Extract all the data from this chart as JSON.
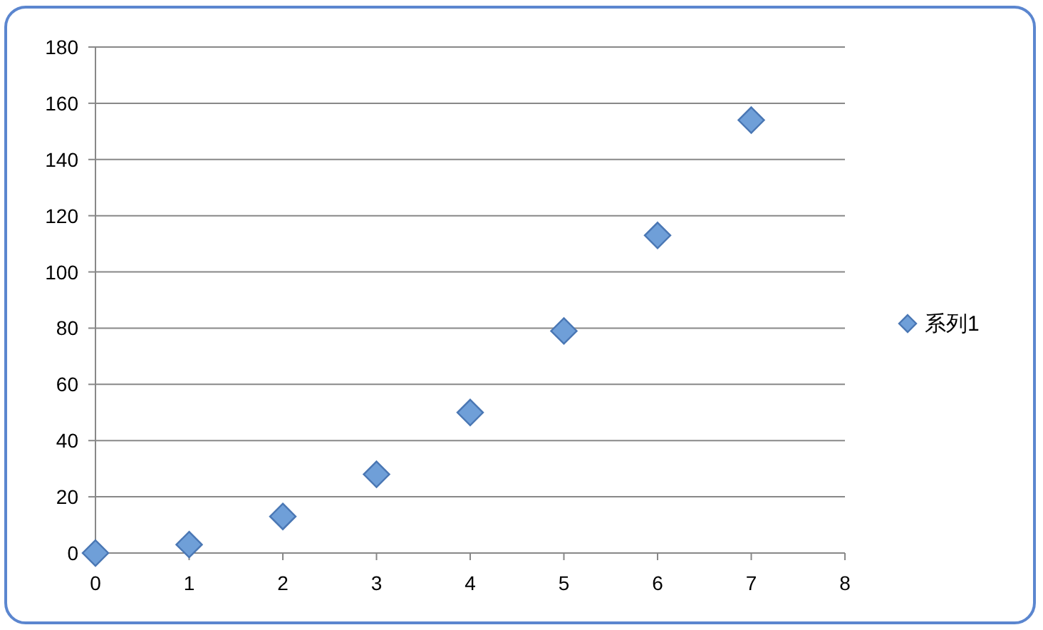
{
  "chart_data": {
    "type": "scatter",
    "x": [
      0,
      1,
      2,
      3,
      4,
      5,
      6,
      7
    ],
    "series": [
      {
        "name": "系列1",
        "color": "#6f9fd8",
        "values": [
          0,
          3,
          13,
          28,
          50,
          79,
          113,
          154
        ]
      }
    ],
    "xlim": [
      0,
      8
    ],
    "xticks": [
      0,
      1,
      2,
      3,
      4,
      5,
      6,
      7,
      8
    ],
    "ylim": [
      0,
      180
    ],
    "yticks": [
      0,
      20,
      40,
      60,
      80,
      100,
      120,
      140,
      160,
      180
    ],
    "grid": "y",
    "legend": "right",
    "marker": "diamond"
  }
}
